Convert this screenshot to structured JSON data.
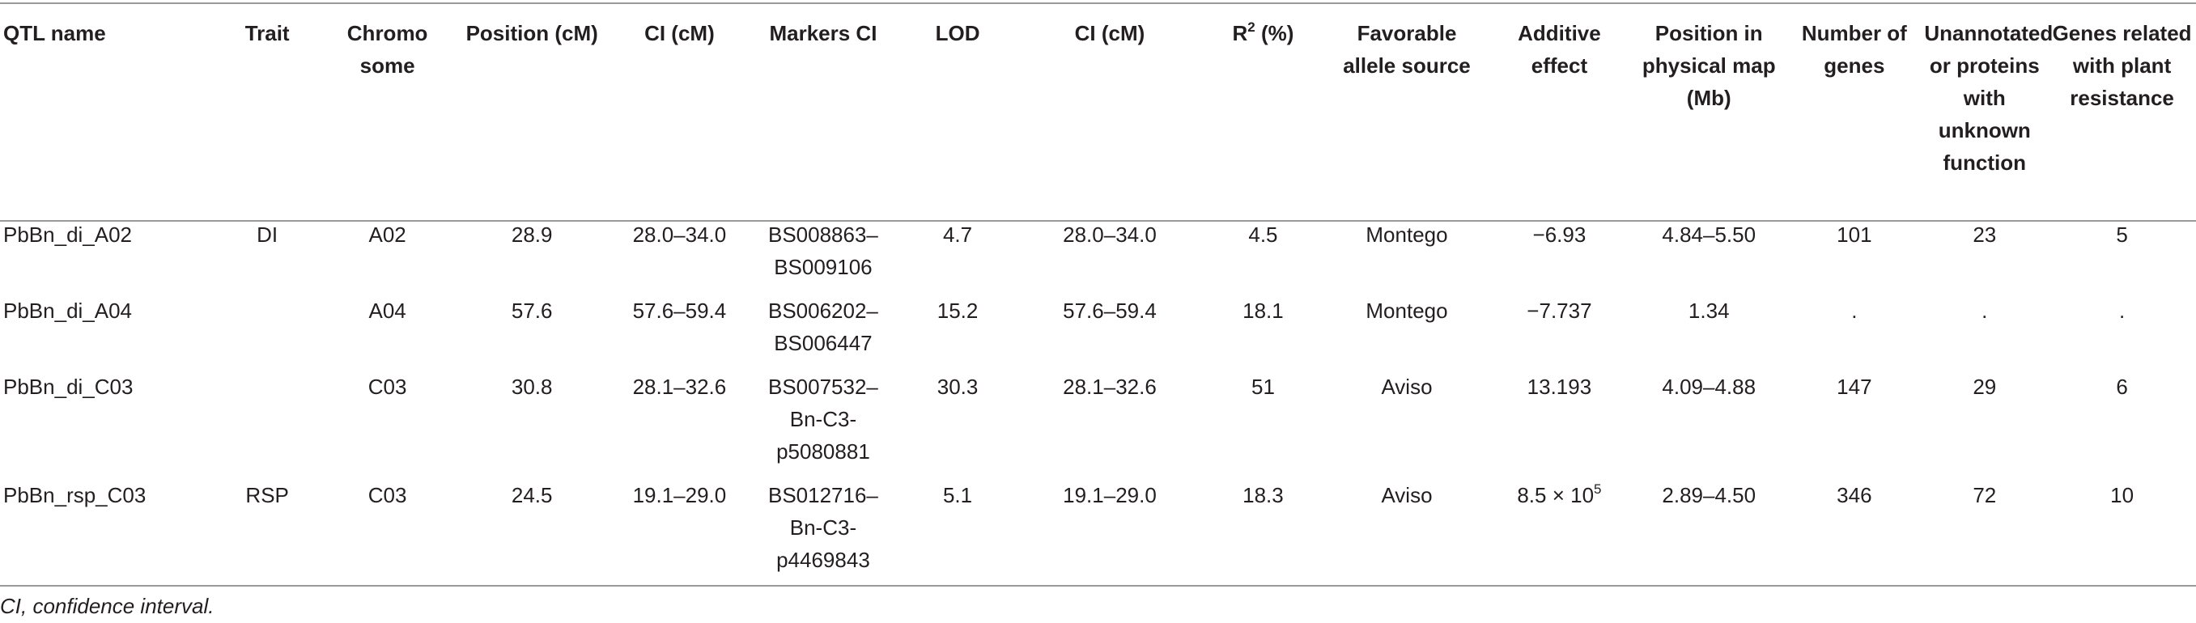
{
  "table": {
    "headers": [
      "QTL name",
      "Trait",
      "Chromo some",
      "Position (cM)",
      "CI (cM)",
      "Markers CI",
      "LOD",
      "CI (cM)",
      "R",
      "Favorable allele source",
      "Additive effect",
      "Position in physical map (Mb)",
      "Number of genes",
      "Unannotated or proteins with unknown function",
      "Genes related with plant resistance"
    ],
    "r2_header": {
      "base": "R",
      "sup": "2",
      "suffix": " (%)"
    },
    "rows": [
      {
        "qtl": "PbBn_di_A02",
        "trait": "DI",
        "chromosome": "A02",
        "position": "28.9",
        "ci1": "28.0–34.0",
        "markers": "BS008863–BS009106",
        "lod": "4.7",
        "ci2": "28.0–34.0",
        "r2": "4.5",
        "source": "Montego",
        "additive": "−6.93",
        "physical": "4.84–5.50",
        "genes": "101",
        "unannotated": "23",
        "resistance": "5"
      },
      {
        "qtl": "PbBn_di_A04",
        "trait": "",
        "chromosome": "A04",
        "position": "57.6",
        "ci1": "57.6–59.4",
        "markers": "BS006202–BS006447",
        "lod": "15.2",
        "ci2": "57.6–59.4",
        "r2": "18.1",
        "source": "Montego",
        "additive": "−7.737",
        "physical": "1.34",
        "genes": ".",
        "unannotated": ".",
        "resistance": "."
      },
      {
        "qtl": "PbBn_di_C03",
        "trait": "",
        "chromosome": "C03",
        "position": "30.8",
        "ci1": "28.1–32.6",
        "markers": "BS007532–Bn-C3-p5080881",
        "lod": "30.3",
        "ci2": "28.1–32.6",
        "r2": "51",
        "source": "Aviso",
        "additive": "13.193",
        "physical": "4.09–4.88",
        "genes": "147",
        "unannotated": "29",
        "resistance": "6"
      },
      {
        "qtl": "PbBn_rsp_C03",
        "trait": "RSP",
        "chromosome": "C03",
        "position": "24.5",
        "ci1": "19.1–29.0",
        "markers": "BS012716–Bn-C3-p4469843",
        "lod": "5.1",
        "ci2": "19.1–29.0",
        "r2": "18.3",
        "source": "Aviso",
        "additive_base": "8.5 × 10",
        "additive_exp": "5",
        "physical": "2.89–4.50",
        "genes": "346",
        "unannotated": "72",
        "resistance": "10"
      }
    ],
    "footnote": "CI, confidence interval."
  }
}
